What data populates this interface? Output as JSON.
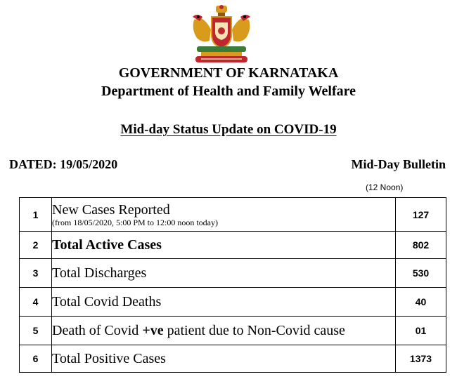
{
  "header": {
    "emblem_icon": "karnataka-state-emblem-icon",
    "government": "GOVERNMENT OF KARNATAKA",
    "department": "Department of Health and Family Welfare",
    "title": "Mid-day Status Update on COVID-19"
  },
  "info": {
    "dated": "DATED: 19/05/2020",
    "bulletin": "Mid-Day Bulletin",
    "bulletin_time": "(12 Noon)"
  },
  "table": {
    "rows": [
      {
        "no": "1",
        "label": "New Cases Reported",
        "note": "(from 18/05/2020, 5:00 PM to 12:00 noon today)",
        "value": "127"
      },
      {
        "no": "2",
        "label": "Total Active Cases",
        "value": "802"
      },
      {
        "no": "3",
        "label": "Total Discharges",
        "value": "530"
      },
      {
        "no": "4",
        "label": "Total Covid Deaths",
        "value": "40"
      },
      {
        "no": "5",
        "label_pre": "Death of Covid ",
        "label_bold": "+ve",
        "label_post": " patient due to Non-Covid cause",
        "value": "01"
      },
      {
        "no": "6",
        "label": "Total Positive Cases",
        "value": "1373"
      }
    ]
  },
  "colors": {
    "emblem_gold": "#d99b1c",
    "emblem_red": "#c0262e",
    "emblem_green": "#3a7d3a"
  }
}
